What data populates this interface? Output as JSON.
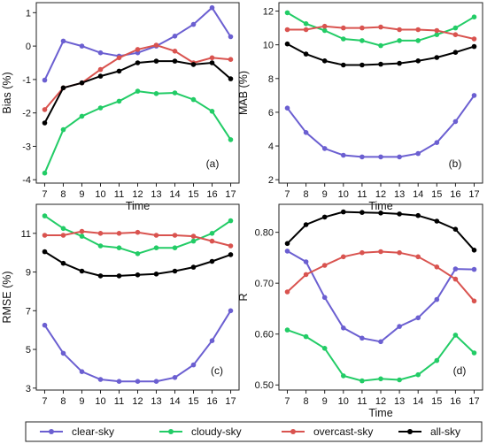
{
  "colors": {
    "clear-sky": "#6b5fd1",
    "cloudy-sky": "#22cc66",
    "overcast-sky": "#d9534f",
    "all-sky": "#000000"
  },
  "legend": {
    "items": [
      {
        "key": "clear-sky",
        "label": "clear-sky"
      },
      {
        "key": "cloudy-sky",
        "label": "cloudy-sky"
      },
      {
        "key": "overcast-sky",
        "label": "overcast-sky"
      },
      {
        "key": "all-sky",
        "label": "all-sky"
      }
    ]
  },
  "chart_data": [
    {
      "type": "line",
      "panel": "(a)",
      "xlabel": "Time",
      "ylabel": "Bias (%)",
      "x": [
        7,
        8,
        9,
        10,
        11,
        12,
        13,
        14,
        15,
        16,
        17
      ],
      "ylim": [
        -4.1,
        1.3
      ],
      "yticks": [
        -4,
        -3,
        -2,
        -1,
        0,
        1
      ],
      "ytick_labels": [
        "-4",
        "-3",
        "-2",
        "-1",
        "0",
        "1"
      ],
      "series": [
        {
          "name": "clear-sky",
          "values": [
            -1.02,
            0.15,
            0.0,
            -0.2,
            -0.3,
            -0.2,
            0.0,
            0.3,
            0.65,
            1.15,
            0.28
          ]
        },
        {
          "name": "cloudy-sky",
          "values": [
            -3.8,
            -2.5,
            -2.1,
            -1.85,
            -1.65,
            -1.35,
            -1.42,
            -1.4,
            -1.6,
            -1.95,
            -2.8
          ]
        },
        {
          "name": "overcast-sky",
          "values": [
            -1.9,
            -1.25,
            -1.1,
            -0.7,
            -0.35,
            -0.1,
            0.03,
            -0.15,
            -0.5,
            -0.35,
            -0.4
          ]
        },
        {
          "name": "all-sky",
          "values": [
            -2.3,
            -1.25,
            -1.1,
            -0.9,
            -0.75,
            -0.5,
            -0.45,
            -0.45,
            -0.55,
            -0.5,
            -0.98
          ]
        }
      ]
    },
    {
      "type": "line",
      "panel": "(b)",
      "xlabel": "Time",
      "ylabel": "MAB (%)",
      "x": [
        7,
        8,
        9,
        10,
        11,
        12,
        13,
        14,
        15,
        16,
        17
      ],
      "ylim": [
        1.8,
        12.5
      ],
      "yticks": [
        2,
        4,
        6,
        8,
        10,
        12
      ],
      "ytick_labels": [
        "2",
        "4",
        "6",
        "8",
        "10",
        "12"
      ],
      "series": [
        {
          "name": "clear-sky",
          "values": [
            6.25,
            4.8,
            3.85,
            3.45,
            3.35,
            3.35,
            3.35,
            3.55,
            4.2,
            5.45,
            7.0
          ]
        },
        {
          "name": "cloudy-sky",
          "values": [
            11.9,
            11.25,
            10.85,
            10.35,
            10.25,
            9.95,
            10.25,
            10.25,
            10.6,
            11.0,
            11.65
          ]
        },
        {
          "name": "overcast-sky",
          "values": [
            10.9,
            10.9,
            11.1,
            11.0,
            11.0,
            11.05,
            10.9,
            10.9,
            10.85,
            10.6,
            10.35
          ]
        },
        {
          "name": "all-sky",
          "values": [
            10.05,
            9.45,
            9.05,
            8.8,
            8.8,
            8.85,
            8.9,
            9.05,
            9.25,
            9.55,
            9.9
          ]
        }
      ]
    },
    {
      "type": "line",
      "panel": "(c)",
      "xlabel": "",
      "ylabel": "RMSE (%)",
      "x": [
        7,
        8,
        9,
        10,
        11,
        12,
        13,
        14,
        15,
        16,
        17
      ],
      "ylim": [
        2.9,
        12.5
      ],
      "yticks": [
        3,
        5,
        7,
        9,
        11
      ],
      "ytick_labels": [
        "3",
        "5",
        "7",
        "9",
        "11"
      ],
      "series": [
        {
          "name": "clear-sky",
          "values": [
            6.25,
            4.8,
            3.85,
            3.45,
            3.35,
            3.35,
            3.35,
            3.55,
            4.2,
            5.45,
            7.0
          ]
        },
        {
          "name": "cloudy-sky",
          "values": [
            11.9,
            11.25,
            10.85,
            10.35,
            10.25,
            9.95,
            10.25,
            10.25,
            10.6,
            11.0,
            11.65
          ]
        },
        {
          "name": "overcast-sky",
          "values": [
            10.9,
            10.9,
            11.1,
            11.0,
            11.0,
            11.05,
            10.9,
            10.9,
            10.85,
            10.6,
            10.35
          ]
        },
        {
          "name": "all-sky",
          "values": [
            10.05,
            9.45,
            9.05,
            8.8,
            8.8,
            8.85,
            8.9,
            9.05,
            9.25,
            9.55,
            9.9
          ]
        }
      ]
    },
    {
      "type": "line",
      "panel": "(d)",
      "xlabel": "Time",
      "ylabel": "R",
      "x": [
        7,
        8,
        9,
        10,
        11,
        12,
        13,
        14,
        15,
        16,
        17
      ],
      "ylim": [
        0.49,
        0.855
      ],
      "yticks": [
        0.5,
        0.6,
        0.7,
        0.8
      ],
      "ytick_labels": [
        "0.50",
        "0.60",
        "0.70",
        "0.80"
      ],
      "series": [
        {
          "name": "clear-sky",
          "values": [
            0.763,
            0.742,
            0.672,
            0.612,
            0.592,
            0.585,
            0.615,
            0.632,
            0.668,
            0.728,
            0.727
          ]
        },
        {
          "name": "cloudy-sky",
          "values": [
            0.608,
            0.595,
            0.572,
            0.518,
            0.508,
            0.512,
            0.51,
            0.52,
            0.548,
            0.598,
            0.563
          ]
        },
        {
          "name": "overcast-sky",
          "values": [
            0.683,
            0.717,
            0.735,
            0.752,
            0.76,
            0.762,
            0.76,
            0.752,
            0.732,
            0.708,
            0.665
          ]
        },
        {
          "name": "all-sky",
          "values": [
            0.778,
            0.815,
            0.83,
            0.84,
            0.839,
            0.838,
            0.836,
            0.833,
            0.822,
            0.806,
            0.765
          ]
        }
      ]
    }
  ]
}
